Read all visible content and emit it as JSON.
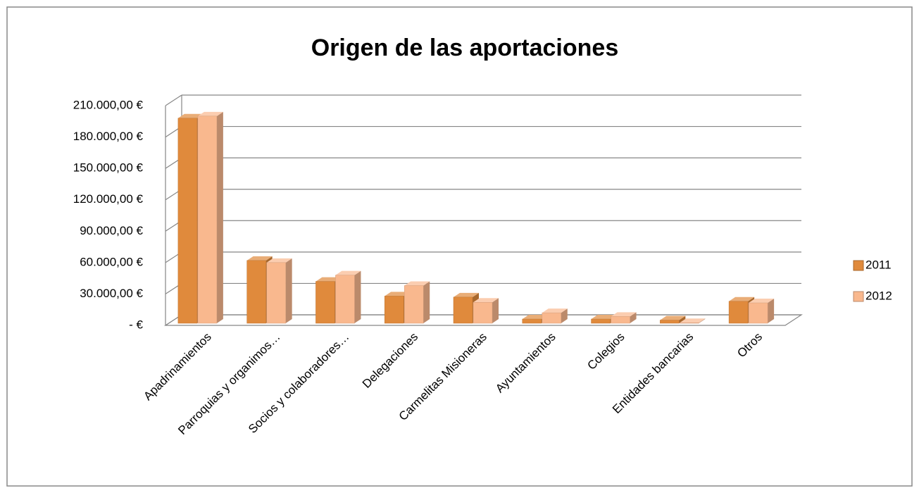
{
  "chart_data": {
    "type": "bar3d",
    "title": "Origen de las aportaciones",
    "categories": [
      "Apadrinamientos",
      "Parroquias y organimos…",
      "Socios y colaboradores…",
      "Delegaciones",
      "Carmelitas Misioneras",
      "Ayuntamientos",
      "Colegios",
      "Entidades bancarias",
      "Otros"
    ],
    "series": [
      {
        "name": "2011",
        "color": "#e08a3c",
        "values": [
          196000,
          60000,
          40000,
          26000,
          25000,
          4000,
          4000,
          3000,
          21000
        ]
      },
      {
        "name": "2012",
        "color": "#f9b88e",
        "values": [
          198000,
          58000,
          46000,
          36000,
          20000,
          10000,
          6500,
          500,
          19500
        ]
      }
    ],
    "ylim": [
      0,
      210000
    ],
    "yticks": [
      {
        "value": 0,
        "label": "-  €"
      },
      {
        "value": 30000,
        "label": "30.000,00 €"
      },
      {
        "value": 60000,
        "label": "60.000,00 €"
      },
      {
        "value": 90000,
        "label": "90.000,00 €"
      },
      {
        "value": 120000,
        "label": "120.000,00 €"
      },
      {
        "value": 150000,
        "label": "150.000,00 €"
      },
      {
        "value": 180000,
        "label": "180.000,00 €"
      },
      {
        "value": 210000,
        "label": "210.000,00 €"
      }
    ],
    "grid": true,
    "legend": "right"
  }
}
